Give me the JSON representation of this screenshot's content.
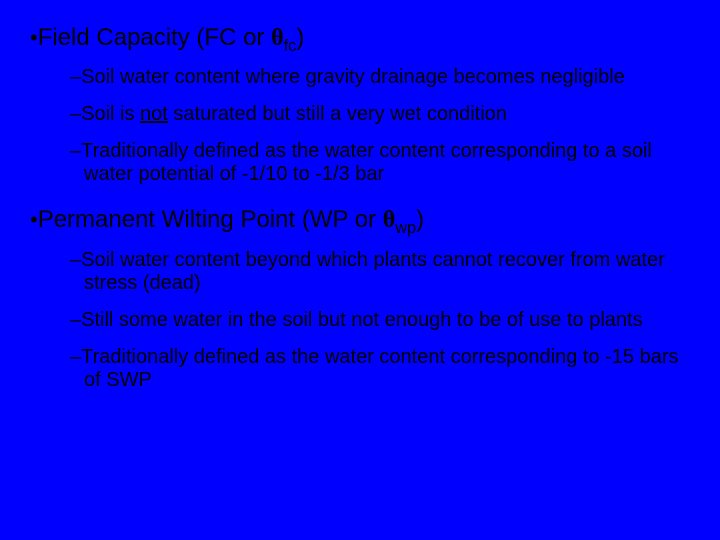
{
  "background_color": "#0000ff",
  "text_color": "#000000",
  "fc": {
    "title_prefix": "Field Capacity (FC or ",
    "theta": "θ",
    "theta_sub": "fc",
    "title_suffix": ")",
    "sub1": "Soil water content where gravity drainage becomes negligible",
    "sub2_a": "Soil is ",
    "sub2_not": "not",
    "sub2_b": " saturated but still a very wet condition",
    "sub3": "Traditionally defined as the water content corresponding to a soil water potential of -1/10 to -1/3 bar"
  },
  "wp": {
    "title_prefix": "Permanent Wilting Point (WP or ",
    "theta": "θ",
    "theta_sub": "wp",
    "title_suffix": ")",
    "sub1": "Soil water content beyond which plants cannot recover from water stress (dead)",
    "sub2": "Still some water in the soil but not enough to be of use to plants",
    "sub3": "Traditionally defined as the water content corresponding to -15 bars of SWP"
  }
}
